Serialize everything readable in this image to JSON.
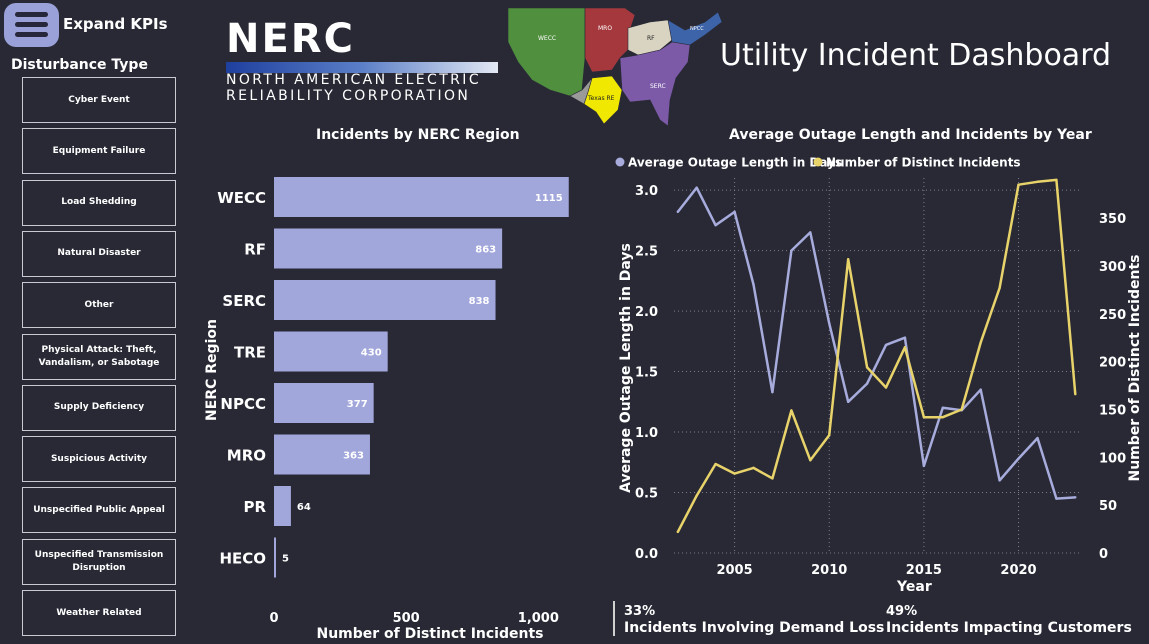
{
  "header": {
    "expand_label": "Expand KPIs",
    "dashboard_title": "Utility Incident Dashboard"
  },
  "logo": {
    "word": "NERC",
    "line1": "NORTH AMERICAN ELECTRIC",
    "line2": "RELIABILITY CORPORATION"
  },
  "map": {
    "regions": [
      {
        "label": "WECC",
        "color": "#4f8f3d"
      },
      {
        "label": "MRO",
        "color": "#a4383d"
      },
      {
        "label": "RF",
        "color": "#d9d4c2"
      },
      {
        "label": "NPCC",
        "color": "#3d63a8"
      },
      {
        "label": "SERC",
        "color": "#7c5aa8"
      },
      {
        "label": "Texas RE",
        "color": "#f0e800"
      }
    ]
  },
  "slicer": {
    "title": "Disturbance Type",
    "items": [
      "Cyber Event",
      "Equipment Failure",
      "Load Shedding",
      "Natural Disaster",
      "Other",
      "Physical Attack: Theft, Vandalism, or Sabotage",
      "Supply Deficiency",
      "Suspicious Activity",
      "Unspecified Public Appeal",
      "Unspecified Transmission Disruption",
      "Weather Related"
    ]
  },
  "colors": {
    "background": "#282935",
    "bar": "#a2a7db",
    "outage_line": "#a7acdc",
    "incidents_line": "#e8d36b"
  },
  "chart_data": [
    {
      "type": "bar",
      "title": "Incidents by NERC Region",
      "xlabel": "Number of Distinct Incidents",
      "ylabel": "NERC Region",
      "categories": [
        "WECC",
        "RF",
        "SERC",
        "TRE",
        "NPCC",
        "MRO",
        "PR",
        "HECO"
      ],
      "values": [
        1115,
        863,
        838,
        430,
        377,
        363,
        64,
        5
      ],
      "value_labels": [
        "1115",
        "863",
        "838",
        "430",
        "377",
        "363",
        "64",
        "5"
      ],
      "xticks": [
        0,
        500,
        1000
      ],
      "xtick_labels": [
        "0",
        "500",
        "1,000"
      ],
      "xlim": [
        0,
        1150
      ]
    },
    {
      "type": "line",
      "title": "Average Outage Length and Incidents by Year",
      "xlabel": "Year",
      "ylabel": "Average Outage Length in Days",
      "ylabel_right": "Number of Distinct Incidents",
      "legend_position": "top-left",
      "x": [
        2002,
        2003,
        2004,
        2005,
        2006,
        2007,
        2008,
        2009,
        2010,
        2011,
        2012,
        2013,
        2014,
        2015,
        2016,
        2017,
        2018,
        2019,
        2020,
        2021,
        2022,
        2023
      ],
      "series": [
        {
          "name": "Average Outage Length in Days",
          "axis": "left",
          "values": [
            2.82,
            3.02,
            2.71,
            2.82,
            2.22,
            1.33,
            2.5,
            2.65,
            1.9,
            1.25,
            1.4,
            1.72,
            1.78,
            0.72,
            1.2,
            1.18,
            1.35,
            0.6,
            0.78,
            0.95,
            0.45,
            0.46
          ]
        },
        {
          "name": "Number of Distinct Incidents",
          "axis": "right",
          "values": [
            22,
            60,
            93,
            83,
            89,
            78,
            149,
            97,
            123,
            307,
            194,
            173,
            215,
            142,
            142,
            150,
            220,
            277,
            385,
            388,
            390,
            166
          ]
        }
      ],
      "ylim_left": [
        0,
        3.1
      ],
      "yticks_left": [
        0.0,
        0.5,
        1.0,
        1.5,
        2.0,
        2.5,
        3.0
      ],
      "ytick_labels_left": [
        "0.0",
        "0.5",
        "1.0",
        "1.5",
        "2.0",
        "2.5",
        "3.0"
      ],
      "ylim_right": [
        0,
        392
      ],
      "yticks_right": [
        0,
        50,
        100,
        150,
        200,
        250,
        300,
        350
      ],
      "ytick_labels_right": [
        "0",
        "50",
        "100",
        "150",
        "200",
        "250",
        "300",
        "350"
      ],
      "xlim": [
        2001.8,
        2023.3
      ],
      "xticks": [
        2005,
        2010,
        2015,
        2020
      ],
      "xtick_labels": [
        "2005",
        "2010",
        "2015",
        "2020"
      ],
      "grid": true
    }
  ],
  "kpis": [
    {
      "value": "33%",
      "label": "Incidents Involving Demand Loss"
    },
    {
      "value": "49%",
      "label": "Incidents Impacting Customers"
    }
  ]
}
